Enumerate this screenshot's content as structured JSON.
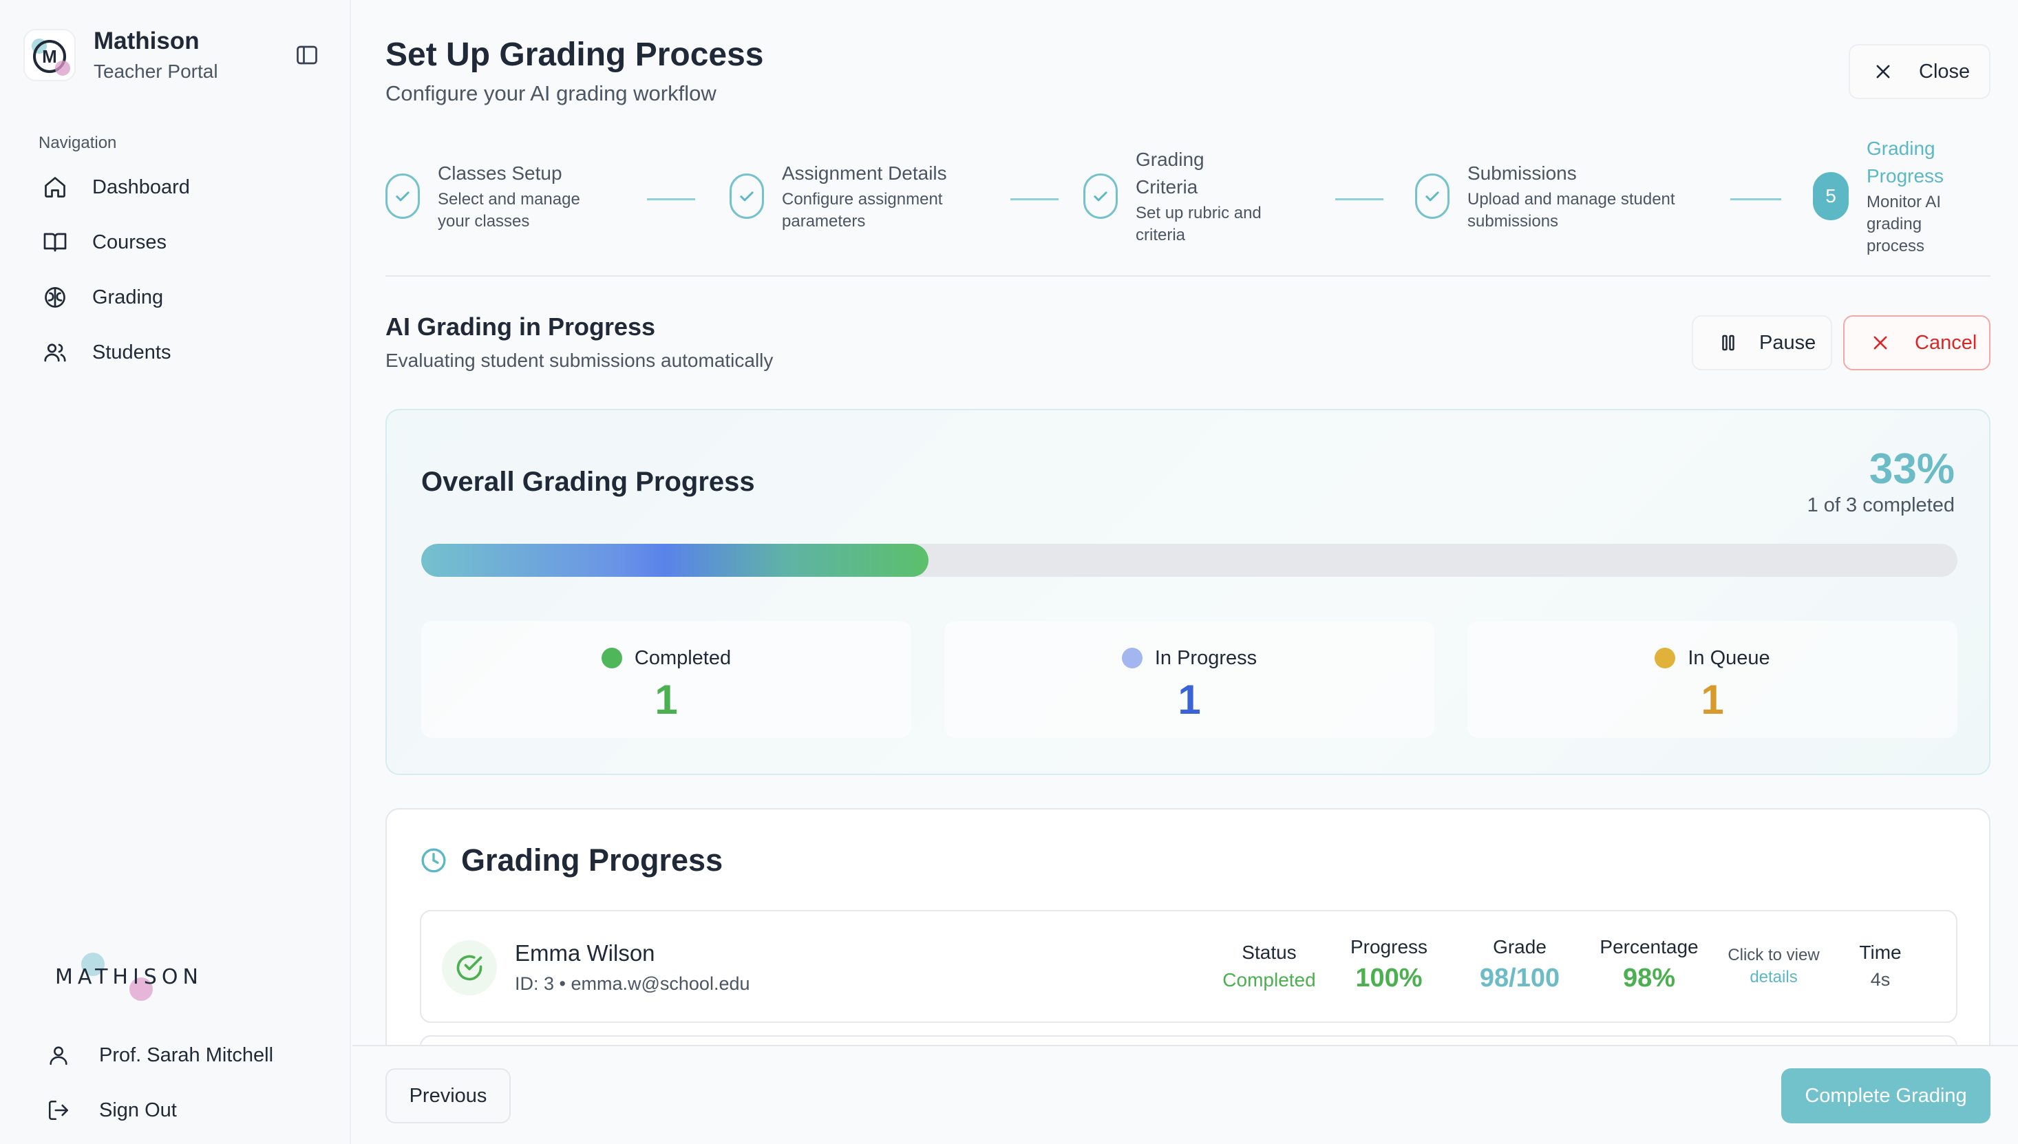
{
  "sidebar": {
    "brand_name": "Mathison",
    "brand_sub": "Teacher Portal",
    "logo_letter": "M",
    "nav_heading": "Navigation",
    "items": [
      {
        "label": "Dashboard",
        "icon": "home-icon"
      },
      {
        "label": "Courses",
        "icon": "book-icon"
      },
      {
        "label": "Grading",
        "icon": "brain-icon"
      },
      {
        "label": "Students",
        "icon": "users-icon"
      }
    ],
    "footer_logo_text": "MATHISON",
    "user_name": "Prof. Sarah Mitchell",
    "sign_out": "Sign Out"
  },
  "header": {
    "title": "Set Up Grading Process",
    "subtitle": "Configure your AI grading workflow",
    "close_label": "Close"
  },
  "stepper": {
    "steps": [
      {
        "title": "Classes Setup",
        "desc_1": "Select and manage",
        "desc_2": "your classes",
        "state": "done"
      },
      {
        "title": "Assignment Details",
        "desc_1": "Configure assignment",
        "desc_2": "parameters",
        "state": "done"
      },
      {
        "title_1": "Grading",
        "title_2": "Criteria",
        "desc_1": "Set up rubric and",
        "desc_2": "criteria",
        "state": "done"
      },
      {
        "title": "Submissions",
        "desc_1": "Upload and manage student",
        "desc_2": "submissions",
        "state": "done"
      },
      {
        "number": "5",
        "title": "Grading Progress",
        "desc_1": "Monitor AI grading",
        "desc_2": "process",
        "state": "active"
      }
    ]
  },
  "section": {
    "title": "AI Grading in Progress",
    "subtitle": "Evaluating student submissions automatically",
    "pause_label": "Pause",
    "cancel_label": "Cancel"
  },
  "overall": {
    "title": "Overall Grading Progress",
    "percent_label": "33%",
    "count_label": "1 of 3 completed",
    "progress_fraction": 0.33,
    "stats": [
      {
        "label": "Completed",
        "value": "1",
        "color": "#4caf50",
        "dot": "#4fb65a"
      },
      {
        "label": "In Progress",
        "value": "1",
        "color": "#3b63d8",
        "dot": "#a4b6f0"
      },
      {
        "label": "In Queue",
        "value": "1",
        "color": "#d89a2b",
        "dot": "#e0b23a"
      }
    ]
  },
  "grading": {
    "title": "Grading Progress",
    "rows": [
      {
        "name": "Emma Wilson",
        "meta": "ID: 3 • emma.w@school.edu",
        "status_h": "Status",
        "status_v": "Completed",
        "progress_h": "Progress",
        "progress_v": "100%",
        "grade_h": "Grade",
        "grade_v": "98/100",
        "percentage_h": "Percentage",
        "percentage_v": "98%",
        "details_1": "Click to view",
        "details_2": "details",
        "time_h": "Time",
        "time_v": "4s"
      }
    ]
  },
  "footer": {
    "previous_label": "Previous",
    "complete_label": "Complete Grading"
  },
  "colors": {
    "accent": "#5bb8c4",
    "success": "#4caf50",
    "danger": "#dc2626"
  }
}
